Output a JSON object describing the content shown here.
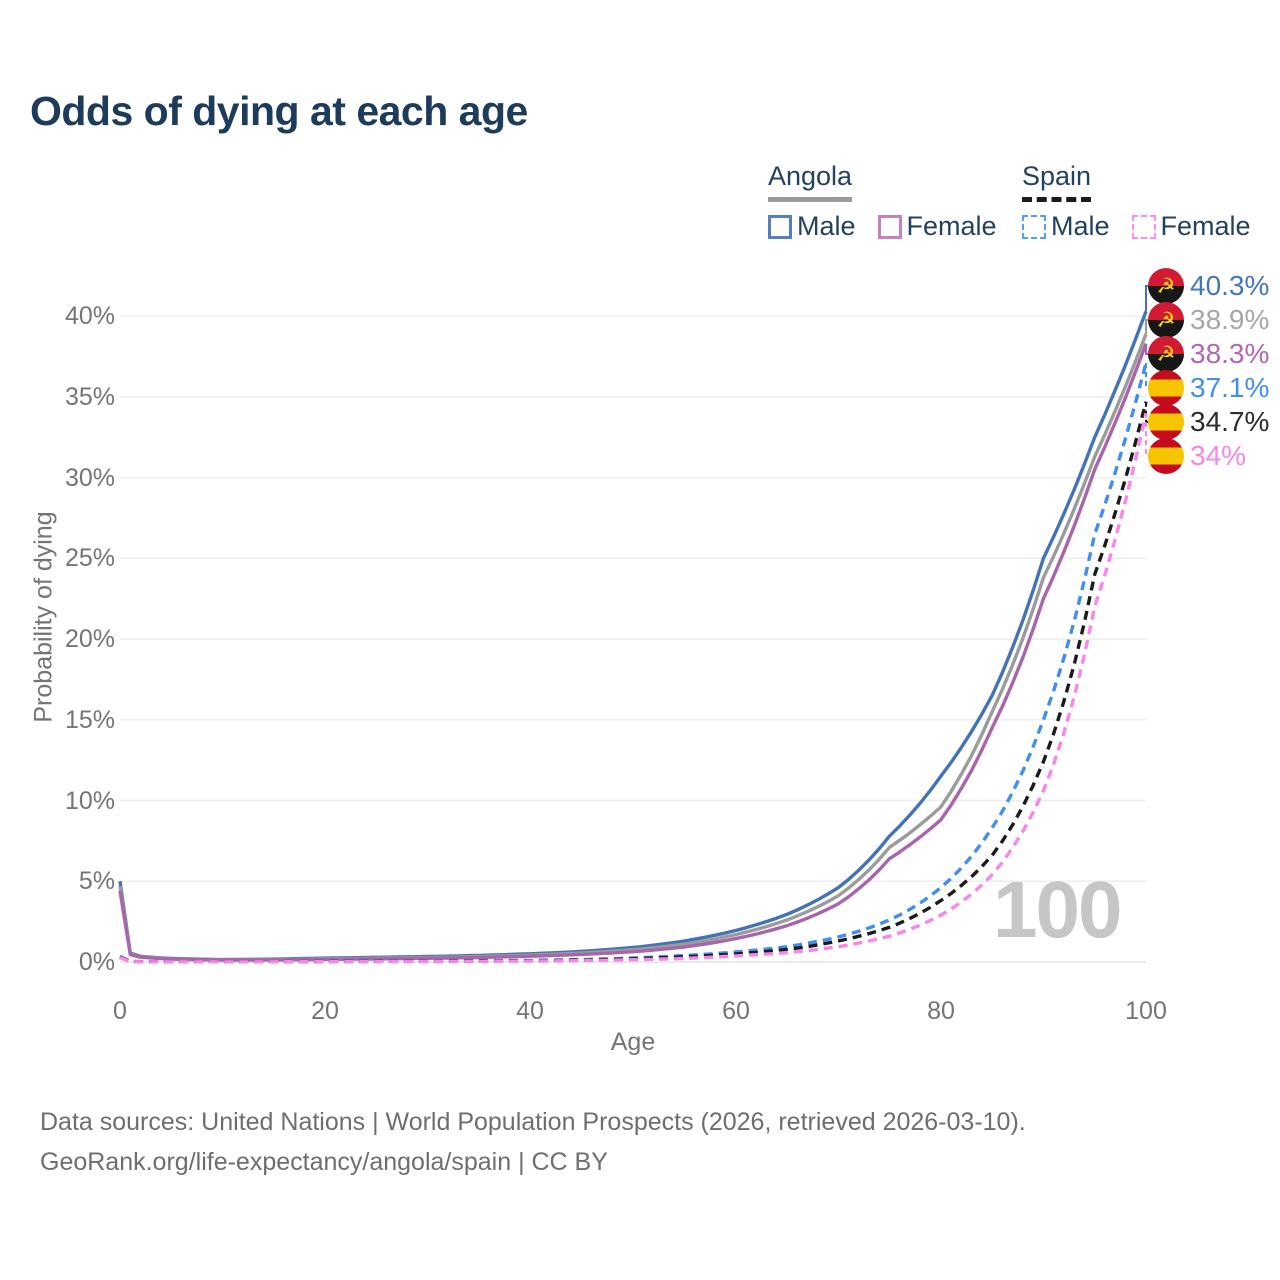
{
  "title": "Odds of dying at each age",
  "legend": {
    "groups": [
      {
        "name": "Angola",
        "line_style": "solid",
        "line_color": "#9b9b9b",
        "items": [
          {
            "label": "Male",
            "color": "#5580bd"
          },
          {
            "label": "Female",
            "color": "#c480c2"
          }
        ]
      },
      {
        "name": "Spain",
        "line_style": "dashed",
        "line_color": "#1b1b1b",
        "items": [
          {
            "label": "Male",
            "color": "#54a0f6"
          },
          {
            "label": "Female",
            "color": "#fc8df0"
          }
        ]
      }
    ]
  },
  "chart_data": {
    "type": "line",
    "title": "Odds of dying at each age",
    "xlabel": "Age",
    "ylabel": "Probability of dying",
    "xlim": [
      0,
      100
    ],
    "ylim_percent": [
      0,
      42
    ],
    "grid": "horizontal",
    "legend_position": "top-right",
    "x_ticks": [
      0,
      20,
      40,
      60,
      80,
      100
    ],
    "x_tick_labels": [
      "0",
      "20",
      "40",
      "60",
      "80",
      "100"
    ],
    "y_ticks_percent": [
      0,
      5,
      10,
      15,
      20,
      25,
      30,
      35,
      40
    ],
    "y_tick_labels": [
      "0%",
      "5%",
      "10%",
      "15%",
      "20%",
      "25%",
      "30%",
      "35%",
      "40%"
    ],
    "ages": [
      0,
      1,
      2,
      5,
      10,
      15,
      20,
      25,
      30,
      35,
      40,
      45,
      50,
      55,
      60,
      65,
      70,
      75,
      80,
      85,
      90,
      95,
      100
    ],
    "series": [
      {
        "country": "Angola",
        "sex": "Male",
        "style": "solid",
        "color": "#4273b8",
        "end_label": "40.3%",
        "values": [
          5.0,
          0.55,
          0.35,
          0.22,
          0.15,
          0.18,
          0.24,
          0.29,
          0.34,
          0.41,
          0.51,
          0.66,
          0.9,
          1.3,
          1.95,
          2.95,
          4.6,
          7.8,
          11.5,
          16.5,
          25.0,
          32.5,
          40.3
        ]
      },
      {
        "country": "Angola",
        "sex": "Both",
        "style": "solid",
        "color": "#9b9b9b",
        "end_label": "38.9%",
        "values": [
          4.7,
          0.5,
          0.32,
          0.2,
          0.13,
          0.15,
          0.2,
          0.24,
          0.28,
          0.34,
          0.43,
          0.56,
          0.76,
          1.1,
          1.7,
          2.6,
          4.1,
          7.1,
          9.6,
          15.5,
          23.8,
          31.3,
          38.9
        ]
      },
      {
        "country": "Angola",
        "sex": "Female",
        "style": "solid",
        "color": "#a965ab",
        "end_label": "38.3%",
        "values": [
          4.4,
          0.46,
          0.3,
          0.18,
          0.12,
          0.13,
          0.16,
          0.19,
          0.23,
          0.28,
          0.36,
          0.47,
          0.64,
          0.93,
          1.45,
          2.25,
          3.6,
          6.4,
          8.8,
          14.5,
          22.5,
          30.5,
          38.3
        ]
      },
      {
        "country": "Spain",
        "sex": "Male",
        "style": "dashed",
        "color": "#3f8ef0",
        "end_label": "37.1%",
        "values": [
          0.35,
          0.03,
          0.02,
          0.01,
          0.01,
          0.02,
          0.04,
          0.05,
          0.06,
          0.08,
          0.1,
          0.15,
          0.25,
          0.4,
          0.62,
          0.95,
          1.55,
          2.6,
          4.6,
          8.3,
          15.0,
          26.5,
          37.1
        ]
      },
      {
        "country": "Spain",
        "sex": "Both",
        "style": "dashed",
        "color": "#1b1b1b",
        "end_label": "34.7%",
        "values": [
          0.3,
          0.03,
          0.02,
          0.01,
          0.01,
          0.02,
          0.03,
          0.04,
          0.05,
          0.06,
          0.08,
          0.12,
          0.2,
          0.32,
          0.5,
          0.78,
          1.3,
          2.15,
          3.8,
          6.6,
          12.4,
          24.0,
          34.7
        ]
      },
      {
        "country": "Spain",
        "sex": "Female",
        "style": "dashed",
        "color": "#f985e8",
        "end_label": "34%",
        "values": [
          0.28,
          0.02,
          0.01,
          0.01,
          0.01,
          0.01,
          0.02,
          0.02,
          0.03,
          0.04,
          0.06,
          0.09,
          0.14,
          0.22,
          0.38,
          0.58,
          0.95,
          1.6,
          2.9,
          5.4,
          10.6,
          22.0,
          34.0
        ]
      }
    ]
  },
  "end_labels": [
    {
      "value": "40.3%",
      "color": "#4576ba",
      "flag": "angola"
    },
    {
      "value": "38.9%",
      "color": "#a6a6a6",
      "flag": "angola"
    },
    {
      "value": "38.3%",
      "color": "#b167b3",
      "flag": "angola"
    },
    {
      "value": "37.1%",
      "color": "#3f8ef0",
      "flag": "spain"
    },
    {
      "value": "34.7%",
      "color": "#2b2b2b",
      "flag": "spain"
    },
    {
      "value": "34%",
      "color": "#f985e8",
      "flag": "spain"
    }
  ],
  "watermark": "100",
  "icons": {
    "angola_emblem": "☭"
  },
  "footer": {
    "line1": "Data sources: United Nations | World Population Prospects (2026, retrieved 2026-03-10).",
    "line2": "GeoRank.org/life-expectancy/angola/spain | CC BY"
  }
}
